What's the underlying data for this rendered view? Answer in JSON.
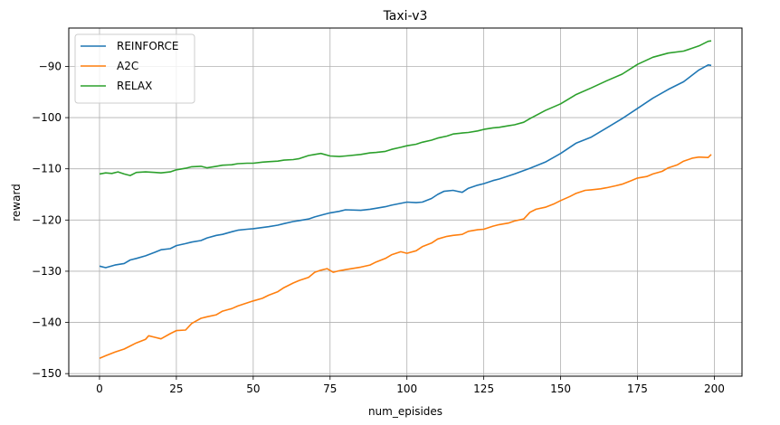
{
  "chart_data": {
    "type": "line",
    "title": "Taxi-v3",
    "xlabel": "num_episides",
    "ylabel": "reward",
    "xlim": [
      -10,
      209
    ],
    "ylim": [
      -150.5,
      -82.5
    ],
    "xticks": [
      0,
      25,
      50,
      75,
      100,
      125,
      150,
      175,
      200
    ],
    "yticks": [
      -150,
      -140,
      -130,
      -120,
      -110,
      -100,
      -90
    ],
    "grid": true,
    "legend_position": "top-left",
    "series": [
      {
        "name": "REINFORCE",
        "color": "#1f77b4",
        "x": [
          0,
          2,
          5,
          8,
          10,
          12,
          15,
          18,
          20,
          23,
          25,
          28,
          30,
          33,
          35,
          38,
          40,
          43,
          45,
          48,
          50,
          55,
          58,
          60,
          63,
          65,
          68,
          70,
          73,
          75,
          78,
          80,
          85,
          88,
          90,
          93,
          95,
          100,
          103,
          105,
          108,
          110,
          112,
          115,
          118,
          120,
          123,
          125,
          128,
          130,
          135,
          140,
          145,
          150,
          155,
          160,
          165,
          170,
          175,
          180,
          185,
          190,
          195,
          198,
          199
        ],
        "y": [
          -129,
          -129.3,
          -128.8,
          -128.5,
          -127.8,
          -127.5,
          -127,
          -126.3,
          -125.8,
          -125.6,
          -125.0,
          -124.6,
          -124.3,
          -124.0,
          -123.5,
          -123.0,
          -122.8,
          -122.3,
          -122.0,
          -121.8,
          -121.7,
          -121.3,
          -121.0,
          -120.7,
          -120.3,
          -120.1,
          -119.8,
          -119.4,
          -118.9,
          -118.6,
          -118.3,
          -118.0,
          -118.1,
          -117.9,
          -117.7,
          -117.4,
          -117.1,
          -116.5,
          -116.6,
          -116.5,
          -115.8,
          -115.0,
          -114.4,
          -114.2,
          -114.6,
          -113.8,
          -113.2,
          -112.9,
          -112.3,
          -112.0,
          -111.0,
          -109.9,
          -108.7,
          -107.0,
          -105.0,
          -103.8,
          -102.0,
          -100.2,
          -98.2,
          -96.2,
          -94.5,
          -93.0,
          -90.7,
          -89.7,
          -89.8
        ]
      },
      {
        "name": "A2C",
        "color": "#ff7f0e",
        "x": [
          0,
          2,
          5,
          8,
          10,
          12,
          15,
          16,
          18,
          20,
          23,
          25,
          28,
          30,
          33,
          35,
          38,
          40,
          43,
          45,
          48,
          50,
          53,
          55,
          58,
          60,
          63,
          65,
          68,
          70,
          72,
          74,
          76,
          78,
          80,
          85,
          88,
          90,
          93,
          95,
          98,
          100,
          103,
          105,
          108,
          110,
          113,
          115,
          118,
          120,
          123,
          125,
          128,
          130,
          133,
          135,
          138,
          140,
          142,
          145,
          148,
          150,
          153,
          155,
          158,
          160,
          163,
          165,
          168,
          170,
          173,
          175,
          178,
          180,
          183,
          185,
          188,
          190,
          193,
          195,
          198,
          199
        ],
        "y": [
          -147,
          -146.5,
          -145.8,
          -145.2,
          -144.6,
          -144.0,
          -143.3,
          -142.6,
          -142.9,
          -143.2,
          -142.2,
          -141.6,
          -141.5,
          -140.2,
          -139.2,
          -138.9,
          -138.5,
          -137.8,
          -137.3,
          -136.8,
          -136.2,
          -135.8,
          -135.3,
          -134.7,
          -134.0,
          -133.2,
          -132.3,
          -131.8,
          -131.2,
          -130.2,
          -129.8,
          -129.5,
          -130.2,
          -129.9,
          -129.7,
          -129.2,
          -128.8,
          -128.2,
          -127.5,
          -126.8,
          -126.2,
          -126.5,
          -126.0,
          -125.2,
          -124.5,
          -123.7,
          -123.2,
          -123.0,
          -122.8,
          -122.2,
          -121.9,
          -121.8,
          -121.2,
          -120.9,
          -120.6,
          -120.2,
          -119.8,
          -118.5,
          -117.9,
          -117.5,
          -116.8,
          -116.2,
          -115.4,
          -114.8,
          -114.2,
          -114.1,
          -113.9,
          -113.7,
          -113.3,
          -113.0,
          -112.3,
          -111.8,
          -111.5,
          -111.0,
          -110.5,
          -109.8,
          -109.2,
          -108.5,
          -107.9,
          -107.7,
          -107.8,
          -107.2
        ]
      },
      {
        "name": "RELAX",
        "color": "#2ca02c",
        "x": [
          0,
          2,
          4,
          6,
          8,
          10,
          12,
          15,
          18,
          20,
          23,
          25,
          28,
          30,
          33,
          35,
          38,
          40,
          43,
          45,
          48,
          50,
          53,
          55,
          58,
          60,
          63,
          65,
          68,
          70,
          72,
          75,
          78,
          80,
          85,
          88,
          90,
          93,
          95,
          98,
          100,
          103,
          105,
          108,
          110,
          113,
          115,
          118,
          120,
          123,
          125,
          128,
          130,
          133,
          135,
          138,
          140,
          145,
          150,
          155,
          160,
          165,
          170,
          175,
          180,
          185,
          190,
          195,
          198,
          199
        ],
        "y": [
          -111,
          -110.8,
          -110.9,
          -110.6,
          -111.0,
          -111.3,
          -110.7,
          -110.6,
          -110.7,
          -110.8,
          -110.6,
          -110.2,
          -109.9,
          -109.6,
          -109.5,
          -109.8,
          -109.5,
          -109.3,
          -109.2,
          -109.0,
          -108.9,
          -108.9,
          -108.7,
          -108.6,
          -108.5,
          -108.3,
          -108.2,
          -108.0,
          -107.4,
          -107.2,
          -107.0,
          -107.5,
          -107.6,
          -107.5,
          -107.2,
          -106.9,
          -106.8,
          -106.6,
          -106.2,
          -105.8,
          -105.5,
          -105.2,
          -104.8,
          -104.4,
          -104.0,
          -103.6,
          -103.2,
          -103.0,
          -102.9,
          -102.6,
          -102.3,
          -102.0,
          -101.9,
          -101.6,
          -101.4,
          -100.9,
          -100.2,
          -98.6,
          -97.3,
          -95.5,
          -94.2,
          -92.8,
          -91.5,
          -89.6,
          -88.2,
          -87.4,
          -87.0,
          -86.0,
          -85.1,
          -85.0
        ]
      }
    ]
  }
}
